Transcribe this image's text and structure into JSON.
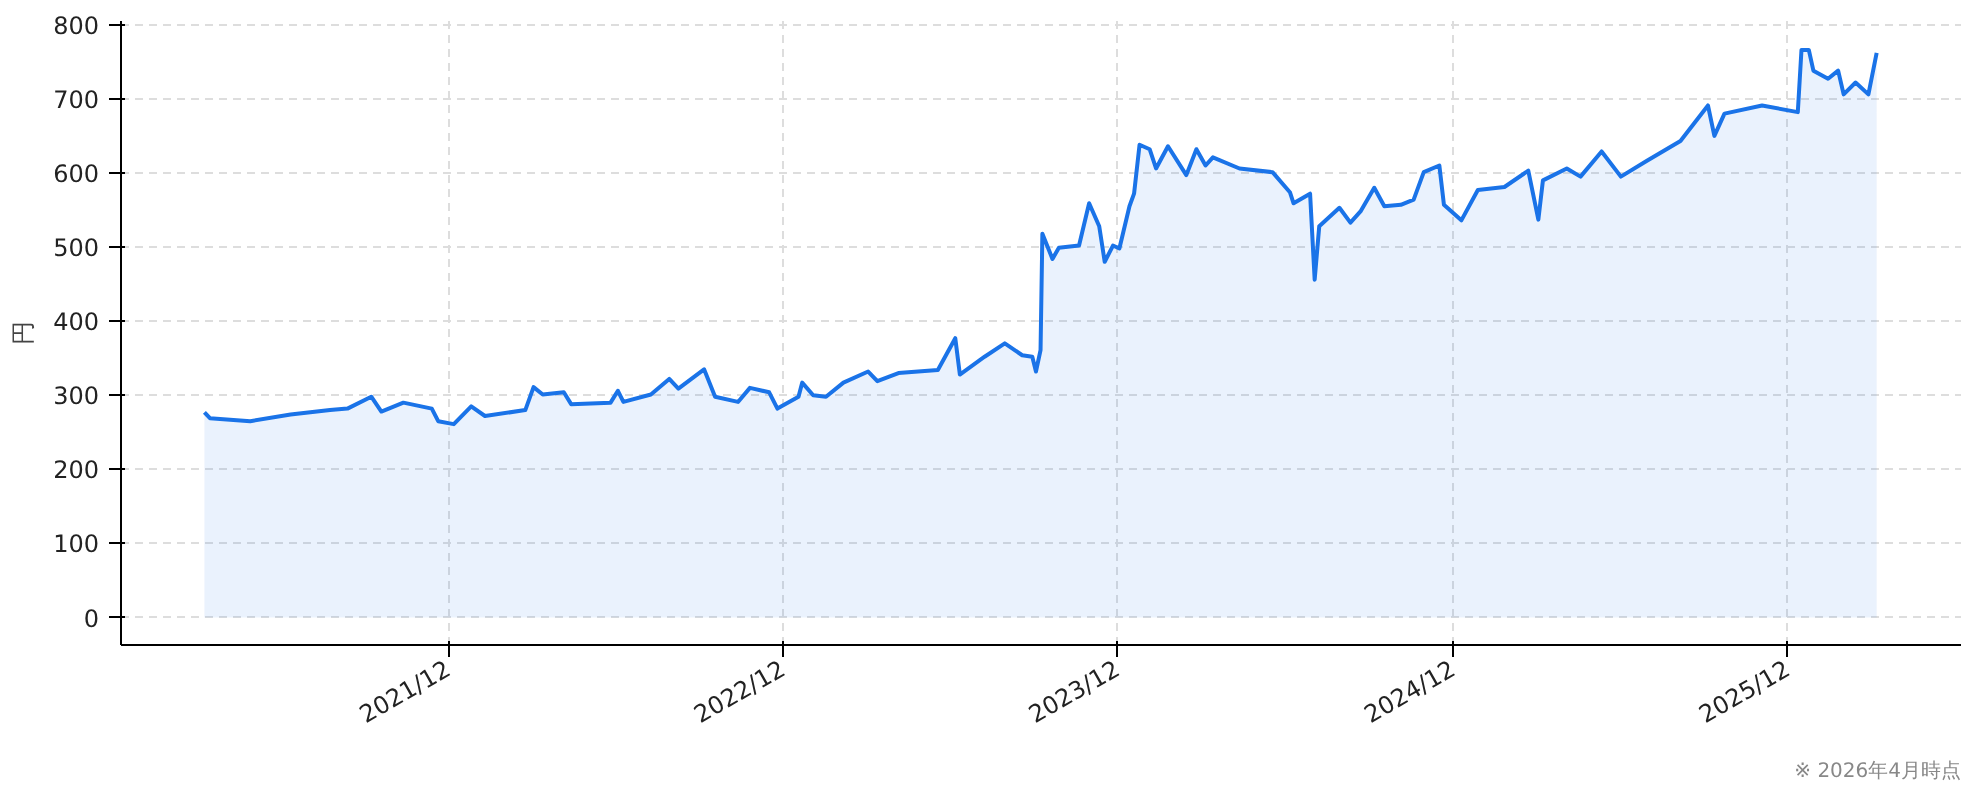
{
  "chart_data": {
    "type": "area",
    "ylabel": "円",
    "color": "#1a73e8",
    "annotations": [
      "※ 2026年4月時点"
    ],
    "x": [
      "2021-03-10",
      "2021-03-16",
      "2021-04-29",
      "2021-06-12",
      "2021-07-25",
      "2021-08-13",
      "2021-09-08",
      "2021-09-19",
      "2021-10-13",
      "2021-11-13",
      "2021-11-20",
      "2021-12-07",
      "2021-12-26",
      "2022-01-10",
      "2022-02-23",
      "2022-03-04",
      "2022-03-14",
      "2022-04-06",
      "2022-04-14",
      "2022-05-27",
      "2022-06-04",
      "2022-06-10",
      "2022-07-10",
      "2022-07-30",
      "2022-08-09",
      "2022-09-06",
      "2022-09-18",
      "2022-10-13",
      "2022-10-26",
      "2022-11-16",
      "2022-11-25",
      "2022-12-18",
      "2022-12-22",
      "2023-01-03",
      "2023-01-17",
      "2023-02-05",
      "2023-03-04",
      "2023-03-14",
      "2023-04-06",
      "2023-05-19",
      "2023-06-07",
      "2023-06-12",
      "2023-07-09",
      "2023-07-31",
      "2023-08-19",
      "2023-08-30",
      "2023-09-03",
      "2023-09-08",
      "2023-09-10",
      "2023-09-21",
      "2023-09-28",
      "2023-10-20",
      "2023-10-31",
      "2023-11-11",
      "2023-11-17",
      "2023-11-26",
      "2023-12-03",
      "2023-12-14",
      "2023-12-19",
      "2023-12-25",
      "2024-01-05",
      "2024-01-12",
      "2024-01-25",
      "2024-02-14",
      "2024-02-25",
      "2024-03-06",
      "2024-03-14",
      "2024-04-12",
      "2024-05-18",
      "2024-06-06",
      "2024-06-10",
      "2024-06-28",
      "2024-07-03",
      "2024-07-08",
      "2024-07-30",
      "2024-08-11",
      "2024-08-22",
      "2024-09-06",
      "2024-09-17",
      "2024-10-05",
      "2024-10-19",
      "2024-10-30",
      "2024-11-16",
      "2024-11-21",
      "2024-12-10",
      "2024-12-28",
      "2025-01-26",
      "2025-02-21",
      "2025-03-04",
      "2025-03-09",
      "2025-04-04",
      "2025-04-19",
      "2025-05-12",
      "2025-06-02",
      "2025-06-30",
      "2025-08-06",
      "2025-09-05",
      "2025-09-12",
      "2025-09-23",
      "2025-11-03",
      "2025-12-12",
      "2025-12-16",
      "2025-12-24",
      "2025-12-29",
      "2026-01-14",
      "2026-01-25",
      "2026-01-31",
      "2026-02-13",
      "2026-02-27",
      "2026-03-08"
    ],
    "values": [
      277,
      269,
      265,
      274,
      280,
      282,
      298,
      278,
      290,
      282,
      265,
      261,
      285,
      272,
      280,
      311,
      301,
      304,
      288,
      290,
      306,
      291,
      301,
      322,
      309,
      335,
      298,
      291,
      310,
      304,
      282,
      298,
      317,
      300,
      298,
      317,
      332,
      319,
      330,
      334,
      377,
      328,
      352,
      370,
      354,
      352,
      332,
      361,
      518,
      484,
      499,
      502,
      559,
      528,
      480,
      502,
      498,
      555,
      572,
      638,
      632,
      606,
      636,
      597,
      632,
      610,
      621,
      606,
      601,
      574,
      559,
      572,
      456,
      528,
      553,
      533,
      548,
      580,
      555,
      557,
      564,
      601,
      610,
      557,
      536,
      577,
      581,
      603,
      537,
      590,
      606,
      595,
      629,
      595,
      616,
      643,
      691,
      650,
      680,
      691,
      682,
      766,
      766,
      738,
      727,
      738,
      706,
      722,
      706,
      762
    ],
    "xlim": [
      "2020-12-09",
      "2026-06-08"
    ],
    "xticks": [
      {
        "value": "2021-12-01",
        "label": "2021/12"
      },
      {
        "value": "2022-12-01",
        "label": "2022/12"
      },
      {
        "value": "2023-12-01",
        "label": "2023/12"
      },
      {
        "value": "2024-12-01",
        "label": "2024/12"
      },
      {
        "value": "2025-12-01",
        "label": "2025/12"
      }
    ],
    "ylim": [
      -37,
      805
    ],
    "yticks": [
      0,
      100,
      200,
      300,
      400,
      500,
      600,
      700,
      800
    ],
    "grid": true,
    "line_style": "solid"
  }
}
